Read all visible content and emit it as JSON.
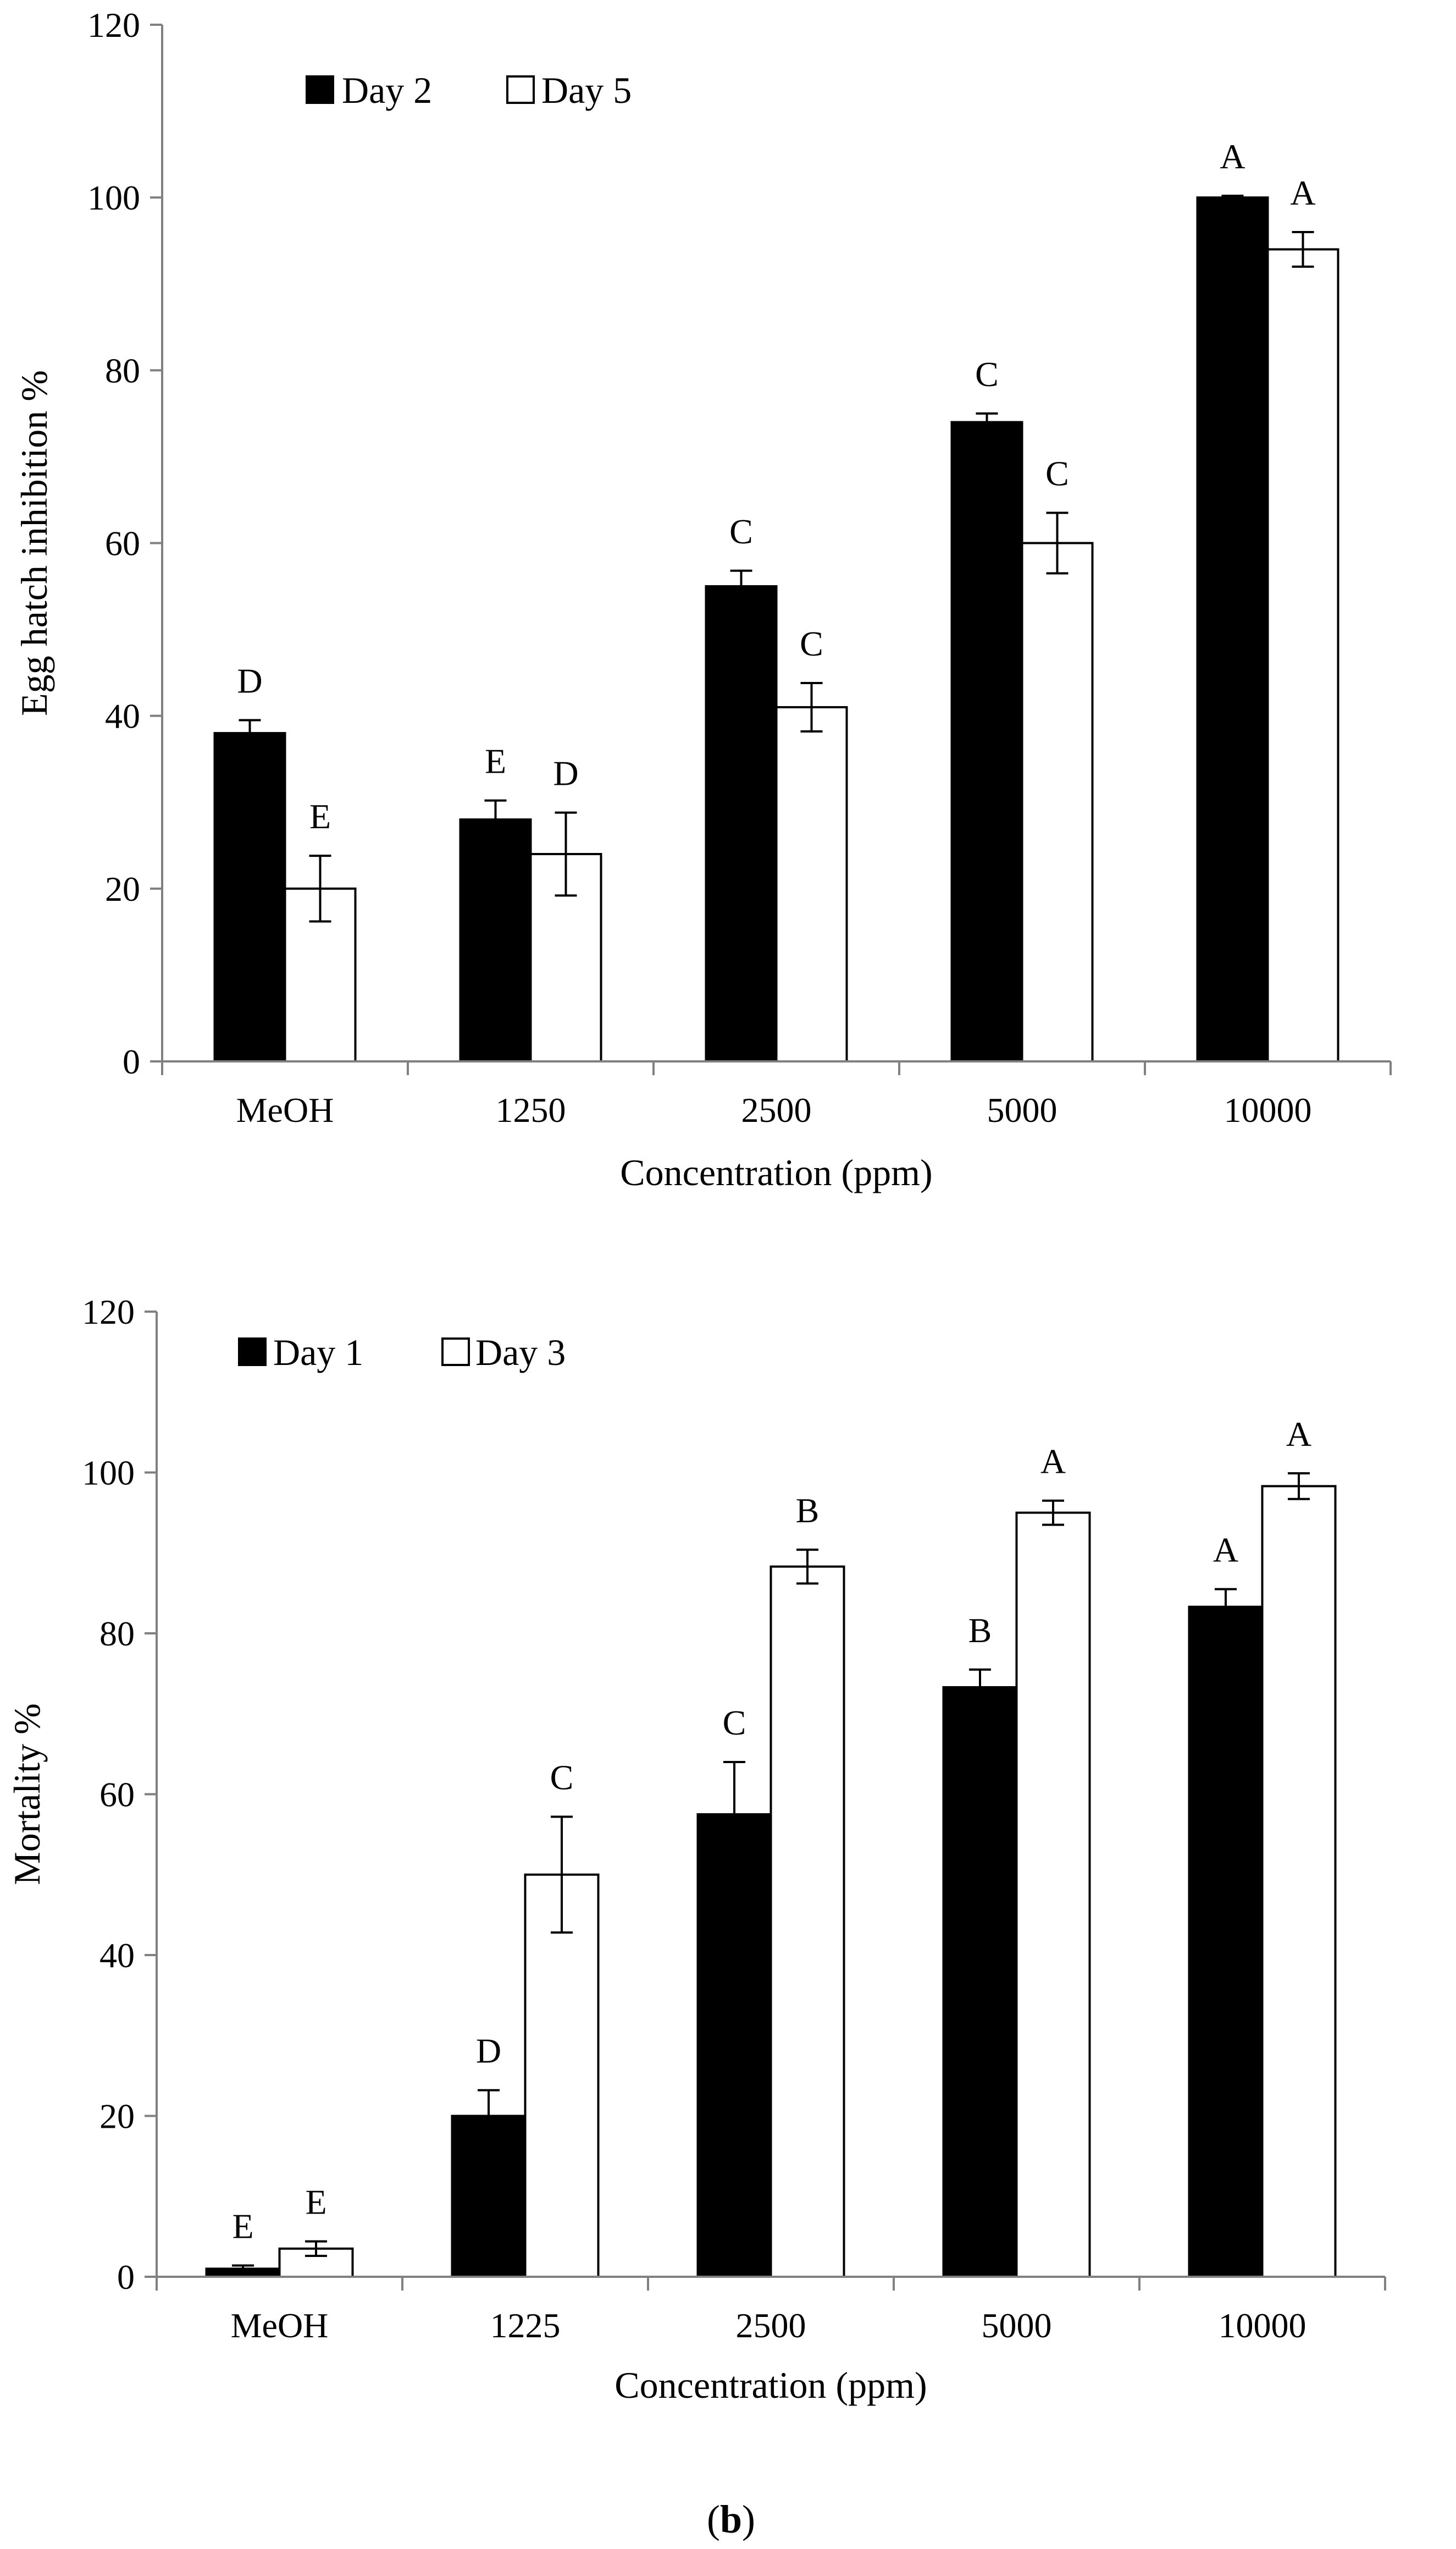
{
  "figure": {
    "caption_open": "(",
    "caption_letter": "b",
    "caption_close": ")"
  },
  "chart_data": [
    {
      "type": "bar",
      "title": "",
      "xlabel": "Concentration (ppm)",
      "ylabel": "Egg hatch inhibition %",
      "ylim": [
        0,
        120
      ],
      "yticks": [
        0,
        20,
        40,
        60,
        80,
        100,
        120
      ],
      "grid": false,
      "legend_position": "top-left",
      "categories": [
        "MeOH",
        "1250",
        "2500",
        "5000",
        "10000"
      ],
      "series": [
        {
          "name": "Day 2",
          "fill": "#000000",
          "values": [
            38,
            28,
            55,
            74,
            100
          ],
          "errors": [
            1.5,
            2.2,
            1.8,
            1.0,
            0.2
          ],
          "labels": [
            "D",
            "E",
            "C",
            "C",
            "A"
          ]
        },
        {
          "name": "Day 5",
          "fill": "#ffffff",
          "values": [
            20,
            24,
            41,
            60,
            94
          ],
          "errors": [
            3.8,
            4.8,
            2.8,
            3.5,
            2.0
          ],
          "labels": [
            "E",
            "D",
            "C",
            "C",
            "A"
          ]
        }
      ]
    },
    {
      "type": "bar",
      "title": "",
      "xlabel": "Concentration (ppm)",
      "ylabel": "Mortality %",
      "ylim": [
        0,
        120
      ],
      "yticks": [
        0,
        20,
        40,
        60,
        80,
        100,
        120
      ],
      "grid": false,
      "legend_position": "top-left",
      "categories": [
        "MeOH",
        "1225",
        "2500",
        "5000",
        "10000"
      ],
      "series": [
        {
          "name": "Day 1",
          "fill": "#000000",
          "values": [
            1,
            20,
            57.5,
            73.3,
            83.3
          ],
          "errors": [
            0.4,
            3.2,
            6.5,
            2.2,
            2.2
          ],
          "labels": [
            "E",
            "D",
            "C",
            "B",
            "A"
          ]
        },
        {
          "name": "Day 3",
          "fill": "#ffffff",
          "values": [
            3.5,
            50,
            88.3,
            95,
            98.3
          ],
          "errors": [
            0.9,
            7.2,
            2.1,
            1.5,
            1.6
          ],
          "labels": [
            "E",
            "C",
            "B",
            "A",
            "A"
          ]
        }
      ]
    }
  ]
}
